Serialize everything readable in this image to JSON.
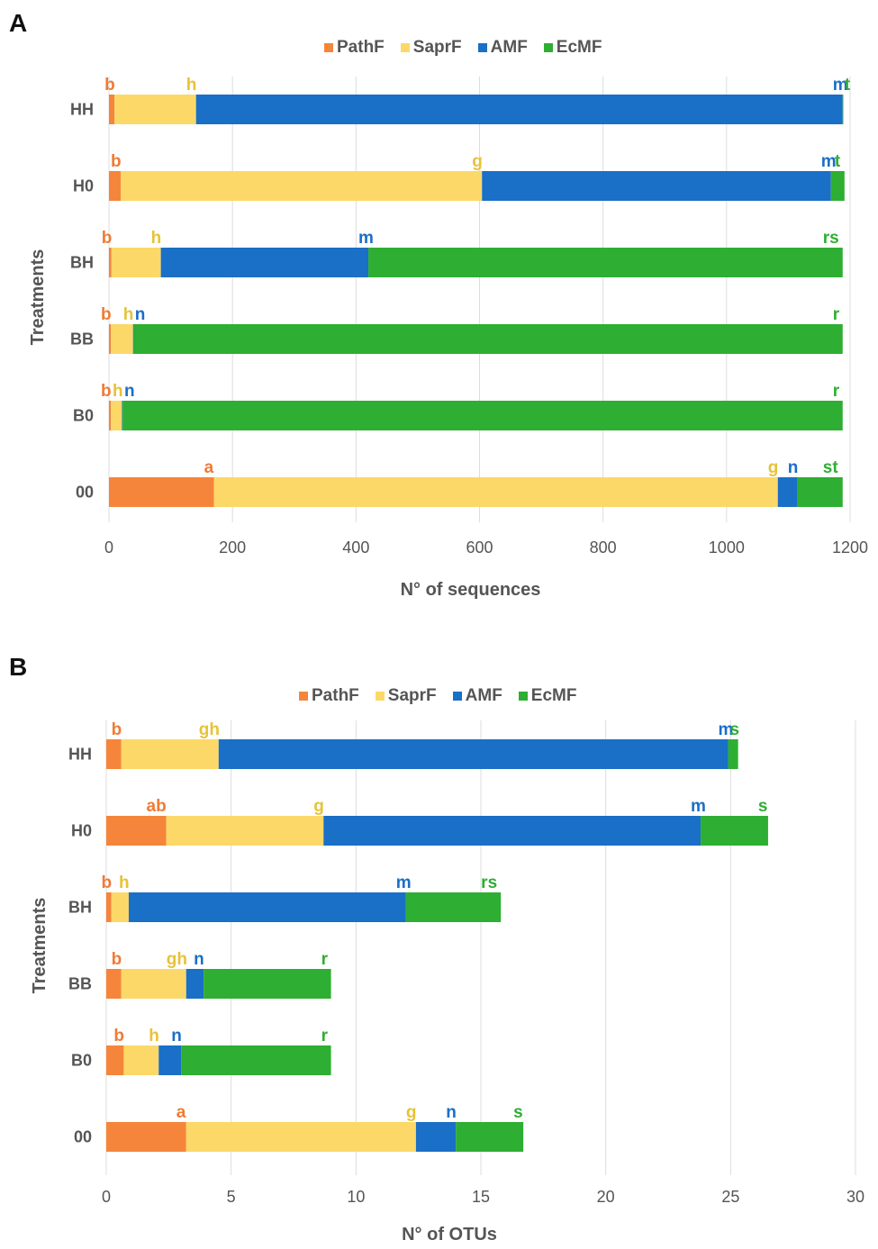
{
  "colors": {
    "PathF": "#f5853a",
    "SaprF": "#fcd868",
    "AMF": "#1a6fc6",
    "EcMF": "#2eae32",
    "PathF_letter": "#ef7b35",
    "SaprF_letter": "#e8c238",
    "AMF_letter": "#1a6fc6",
    "EcMF_letter": "#2eae32",
    "grid": "#dddddd",
    "axis_text": "#555555"
  },
  "chart_data": [
    {
      "panel": "A",
      "type": "bar",
      "orientation": "horizontal",
      "stacked": true,
      "xlabel": "N° of sequences",
      "ylabel": "Treatments",
      "xlim": [
        0,
        1200
      ],
      "xticks": [
        0,
        200,
        400,
        600,
        800,
        1000,
        1200
      ],
      "categories": [
        "HH",
        "H0",
        "BH",
        "BB",
        "B0",
        "00"
      ],
      "legend": [
        "PathF",
        "SaprF",
        "AMF",
        "EcMF"
      ],
      "series": [
        {
          "name": "PathF",
          "values": [
            9,
            19,
            4,
            3,
            3,
            170
          ]
        },
        {
          "name": "SaprF",
          "values": [
            132,
            585,
            80,
            36,
            18,
            913
          ]
        },
        {
          "name": "AMF",
          "values": [
            1047,
            565,
            336,
            1,
            1,
            32
          ]
        },
        {
          "name": "EcMF",
          "values": [
            1,
            22,
            768,
            1148,
            1166,
            73
          ]
        }
      ],
      "letters": [
        [
          "b",
          "h",
          "m",
          "t"
        ],
        [
          "b",
          "g",
          "m",
          "t"
        ],
        [
          "b",
          "h",
          "m",
          "rs"
        ],
        [
          "b",
          "h",
          "n",
          "r"
        ],
        [
          "b",
          "h",
          "n",
          "r"
        ],
        [
          "a",
          "g",
          "n",
          "st"
        ]
      ]
    },
    {
      "panel": "B",
      "type": "bar",
      "orientation": "horizontal",
      "stacked": true,
      "xlabel": "N° of OTUs",
      "ylabel": "Treatments",
      "xlim": [
        0,
        30
      ],
      "xticks": [
        0,
        5,
        10,
        15,
        20,
        25,
        30
      ],
      "categories": [
        "HH",
        "H0",
        "BH",
        "BB",
        "B0",
        "00"
      ],
      "legend": [
        "PathF",
        "SaprF",
        "AMF",
        "EcMF"
      ],
      "series": [
        {
          "name": "PathF",
          "values": [
            0.6,
            2.4,
            0.2,
            0.6,
            0.7,
            3.2
          ]
        },
        {
          "name": "SaprF",
          "values": [
            3.9,
            6.3,
            0.7,
            2.6,
            1.4,
            9.2
          ]
        },
        {
          "name": "AMF",
          "values": [
            20.4,
            15.1,
            11.1,
            0.7,
            0.9,
            1.6
          ]
        },
        {
          "name": "EcMF",
          "values": [
            0.4,
            2.7,
            3.8,
            5.1,
            6.0,
            2.7
          ]
        }
      ],
      "letters": [
        [
          "b",
          "gh",
          "m",
          "s"
        ],
        [
          "ab",
          "g",
          "m",
          "s"
        ],
        [
          "b",
          "h",
          "m",
          "rs"
        ],
        [
          "b",
          "gh",
          "n",
          "r"
        ],
        [
          "b",
          "h",
          "n",
          "r"
        ],
        [
          "a",
          "g",
          "n",
          "s"
        ]
      ]
    }
  ],
  "panels": {
    "a": {
      "letter": "A"
    },
    "b": {
      "letter": "B"
    }
  }
}
